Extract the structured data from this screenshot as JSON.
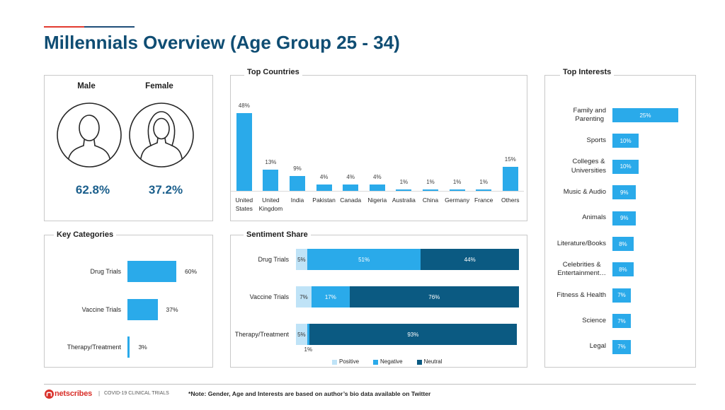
{
  "slide": {
    "title": "Millennials Overview (Age Group 25 - 34)"
  },
  "gender": {
    "male_label": "Male",
    "female_label": "Female",
    "male_value": "62.8%",
    "female_value": "37.2%",
    "male_icon": "male-user-icon",
    "female_icon": "female-user-icon"
  },
  "chart_data": [
    {
      "type": "bar",
      "orientation": "vertical",
      "title": "Top Countries",
      "categories": [
        "United\nStates",
        "United\nKingdom",
        "India",
        "Pakistan",
        "Canada",
        "Nigeria",
        "Australia",
        "China",
        "Germany",
        "France",
        "Others"
      ],
      "values": [
        48,
        13,
        9,
        4,
        4,
        4,
        1,
        1,
        1,
        1,
        15
      ],
      "labels": [
        "48%",
        "13%",
        "9%",
        "4%",
        "4%",
        "4%",
        "1%",
        "1%",
        "1%",
        "1%",
        "15%"
      ],
      "unit": "%",
      "ylim": [
        0,
        50
      ],
      "grid": false,
      "color": "#2aaaea"
    },
    {
      "type": "bar",
      "orientation": "horizontal",
      "title": "Top Interests",
      "categories": [
        "Family and\nParenting",
        "Sports",
        "Colleges &\nUniversities",
        "Music & Audio",
        "Animals",
        "Literature/Books",
        "Celebrities &\nEntertainment…",
        "Fitness & Health",
        "Science",
        "Legal"
      ],
      "values": [
        25,
        10,
        10,
        9,
        9,
        8,
        8,
        7,
        7,
        7
      ],
      "labels": [
        "25%",
        "10%",
        "10%",
        "9%",
        "9%",
        "8%",
        "8%",
        "7%",
        "7%",
        "7%"
      ],
      "unit": "%",
      "xlim": [
        0,
        25
      ],
      "color": "#2aaaea",
      "label_color": "#ffffff"
    },
    {
      "type": "bar",
      "orientation": "horizontal",
      "title": "Key Categories",
      "categories": [
        "Drug Trials",
        "Vaccine Trials",
        "Therapy/Treatment"
      ],
      "values": [
        60,
        37,
        3
      ],
      "labels": [
        "60%",
        "37%",
        "3%"
      ],
      "unit": "%",
      "xlim": [
        0,
        60
      ],
      "color": "#2aaaea"
    },
    {
      "type": "bar",
      "orientation": "horizontal",
      "stacked": true,
      "title": "Sentiment Share",
      "categories": [
        "Drug Trials",
        "Vaccine Trials",
        "Therapy/Treatment"
      ],
      "series": [
        {
          "name": "Positive",
          "values": [
            5,
            7,
            5
          ],
          "labels": [
            "5%",
            "7%",
            "5%"
          ],
          "color": "#bfe3f7",
          "text_color": "#333333"
        },
        {
          "name": "Negative",
          "values": [
            51,
            17,
            1
          ],
          "labels": [
            "51%",
            "17%",
            "1%"
          ],
          "color": "#2aaaea",
          "text_color": "#ffffff"
        },
        {
          "name": "Neutral",
          "values": [
            44,
            76,
            93
          ],
          "labels": [
            "44%",
            "76%",
            "93%"
          ],
          "color": "#0b5a82",
          "text_color": "#ffffff"
        }
      ],
      "unit": "%",
      "xlim": [
        0,
        100
      ],
      "legend": "bottom"
    }
  ],
  "footer": {
    "logo_text": "netscribes",
    "logo_icon": "netscribes-logo-icon",
    "separator": "|",
    "report_name": "COVID-19 CLINICAL TRIALS",
    "note": "*Note: Gender, Age and Interests are based on author’s bio data available on Twitter"
  },
  "colors": {
    "title": "#0f4d73",
    "accent_red": "#e23a2f",
    "accent_blue": "#1f4e79",
    "gender_value": "#1b5f8c",
    "bar": "#2aaaea",
    "panel_border": "#c9c9c9",
    "logo_red": "#d9302a"
  }
}
